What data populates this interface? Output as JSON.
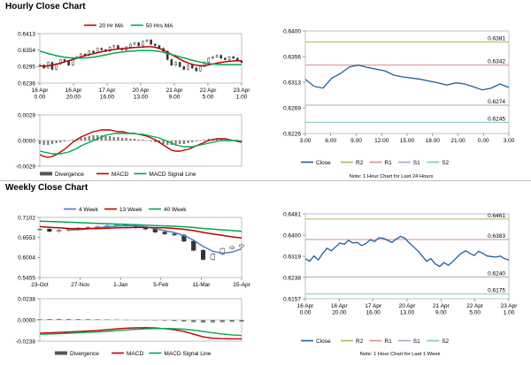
{
  "sections": {
    "hourly_title": "Hourly Close Chart",
    "weekly_title": "Weekly Close Chart"
  },
  "colors": {
    "price": "#333333",
    "ma_short": "#c00000",
    "ma_long": "#00a651",
    "macd": "#c00000",
    "signal": "#00a651",
    "divergence": "#7f7f7f",
    "close": "#1f5f9e",
    "r2": "#b3b35a",
    "r1": "#d98c8c",
    "s1": "#b0a0c8",
    "s2": "#7ec8c8",
    "ma_4": "#4a7fc1",
    "grid": "#d0d0d0"
  },
  "chart_data": [
    {
      "id": "hourly-price",
      "type": "candlestick",
      "legend": [
        "20 Hr MA",
        "50 Hrs MA"
      ],
      "ylim": [
        0.6236,
        0.6413
      ],
      "yticks": [
        "0.6413",
        "0.6354",
        "0.6295",
        "0.6236"
      ],
      "xticks": [
        "16 Apr\n0.00",
        "16 Apr\n20.00",
        "17 Apr\n16.00",
        "20 Apr\n13.00",
        "21 Apr\n9.00",
        "22 Apr\n5.00",
        "23 Apr\n1.00"
      ],
      "close": [
        0.63,
        0.629,
        0.631,
        0.6285,
        0.6305,
        0.632,
        0.6315,
        0.63,
        0.6325,
        0.633,
        0.634,
        0.6335,
        0.635,
        0.6345,
        0.636,
        0.6355,
        0.635,
        0.6365,
        0.637,
        0.636,
        0.6355,
        0.6365,
        0.6375,
        0.638,
        0.637,
        0.6385,
        0.639,
        0.6375,
        0.637,
        0.636,
        0.635,
        0.632,
        0.63,
        0.631,
        0.6295,
        0.6285,
        0.63,
        0.629,
        0.628,
        0.6295,
        0.631,
        0.6325,
        0.633,
        0.6335,
        0.6325,
        0.632,
        0.633,
        0.6325,
        0.6315,
        0.631
      ],
      "ma20": [
        0.6298,
        0.6296,
        0.6298,
        0.63,
        0.6303,
        0.6307,
        0.6312,
        0.6316,
        0.632,
        0.6325,
        0.633,
        0.6334,
        0.6338,
        0.6341,
        0.6345,
        0.6348,
        0.6351,
        0.6354,
        0.6356,
        0.6358,
        0.6359,
        0.636,
        0.6362,
        0.6363,
        0.6364,
        0.6365,
        0.6366,
        0.6366,
        0.6364,
        0.636,
        0.6354,
        0.6346,
        0.6338,
        0.633,
        0.6322,
        0.6314,
        0.6308,
        0.6303,
        0.63,
        0.6298,
        0.6299,
        0.6301,
        0.6304,
        0.6307,
        0.631,
        0.6312,
        0.6314,
        0.6315,
        0.6316,
        0.6316
      ],
      "ma50": [
        0.635,
        0.6346,
        0.6342,
        0.6338,
        0.6334,
        0.6331,
        0.6329,
        0.6327,
        0.6326,
        0.6325,
        0.6325,
        0.6326,
        0.6327,
        0.6329,
        0.6331,
        0.6334,
        0.6337,
        0.634,
        0.6343,
        0.6345,
        0.6347,
        0.6349,
        0.635,
        0.6351,
        0.6352,
        0.6352,
        0.6352,
        0.6352,
        0.6351,
        0.6349,
        0.6346,
        0.6342,
        0.6338,
        0.6334,
        0.633,
        0.6326,
        0.6322,
        0.6318,
        0.6314,
        0.6311,
        0.6308,
        0.6306,
        0.6304,
        0.6303,
        0.6302,
        0.6302,
        0.6302,
        0.6302,
        0.6302,
        0.6302
      ]
    },
    {
      "id": "hourly-macd",
      "type": "macd",
      "ylim": [
        -0.0029,
        0.0029
      ],
      "yticks": [
        "0.0029",
        "0.0000",
        "-0.0029"
      ],
      "legend": [
        "Divergence",
        "MACD",
        "MACD Signal Line"
      ],
      "divergence": [
        -0.0004,
        -0.0005,
        -0.0005,
        -0.0004,
        -0.0003,
        -0.0002,
        -0.0001,
        0.0,
        0.0001,
        0.0002,
        0.0003,
        0.0004,
        0.0005,
        0.0006,
        0.0006,
        0.0006,
        0.0005,
        0.0005,
        0.0004,
        0.0004,
        0.0003,
        0.0003,
        0.0002,
        0.0002,
        0.0001,
        0.0001,
        0.0,
        -0.0001,
        -0.0002,
        -0.0003,
        -0.0004,
        -0.0005,
        -0.0005,
        -0.0005,
        -0.0004,
        -0.0004,
        -0.0003,
        -0.0002,
        -0.0001,
        0.0,
        0.0001,
        0.0002,
        0.0002,
        0.0002,
        0.0002,
        0.0001,
        0.0001,
        0.0,
        -0.0001,
        -0.0001
      ],
      "macd": [
        -0.0016,
        -0.0018,
        -0.0019,
        -0.0018,
        -0.0016,
        -0.0013,
        -0.001,
        -0.0006,
        -0.0002,
        0.0001,
        0.0004,
        0.0006,
        0.0008,
        0.001,
        0.0011,
        0.0012,
        0.0012,
        0.0012,
        0.0011,
        0.001,
        0.001,
        0.0009,
        0.0008,
        0.0008,
        0.0007,
        0.0006,
        0.0005,
        0.0003,
        0.0001,
        -0.0002,
        -0.0005,
        -0.0008,
        -0.0011,
        -0.0012,
        -0.0012,
        -0.0011,
        -0.001,
        -0.0008,
        -0.0006,
        -0.0004,
        -0.0002,
        0.0,
        0.0001,
        0.0002,
        0.0002,
        0.0002,
        0.0001,
        0.0,
        -0.0001,
        -0.0002
      ],
      "signal": [
        -0.0012,
        -0.0013,
        -0.0014,
        -0.0015,
        -0.0015,
        -0.0015,
        -0.0014,
        -0.0013,
        -0.0011,
        -0.0009,
        -0.0006,
        -0.0004,
        -0.0002,
        0.0,
        0.0002,
        0.0004,
        0.0006,
        0.0007,
        0.0008,
        0.0008,
        0.0008,
        0.0008,
        0.0008,
        0.0008,
        0.0007,
        0.0007,
        0.0006,
        0.0005,
        0.0004,
        0.0003,
        0.0001,
        -0.0001,
        -0.0003,
        -0.0005,
        -0.0006,
        -0.0007,
        -0.0007,
        -0.0007,
        -0.0006,
        -0.0005,
        -0.0004,
        -0.0003,
        -0.0002,
        -0.0001,
        0.0,
        0.0,
        0.0,
        0.0,
        0.0,
        -0.0001
      ]
    },
    {
      "id": "hourly-pivot",
      "type": "line",
      "ylim": [
        0.6226,
        0.64
      ],
      "yticks": [
        "0.6400",
        "0.6356",
        "0.6313",
        "0.6269",
        "0.6226"
      ],
      "xticks": [
        "3.00",
        "6.00",
        "9.00",
        "12.00",
        "15.00",
        "18.00",
        "21.00",
        "0.00",
        "3.00"
      ],
      "levels": {
        "R2": 0.6381,
        "R1": 0.6342,
        "S1": 0.6274,
        "S2": 0.6245
      },
      "level_labels": [
        "0.6381",
        "0.6342",
        "0.6274",
        "0.6245"
      ],
      "close": [
        0.6318,
        0.6306,
        0.6303,
        0.632,
        0.6328,
        0.6339,
        0.6342,
        0.6338,
        0.6335,
        0.6332,
        0.6325,
        0.6322,
        0.632,
        0.6318,
        0.6315,
        0.6312,
        0.6308,
        0.6312,
        0.631,
        0.6305,
        0.63,
        0.6303,
        0.631,
        0.6304
      ],
      "legend": [
        "Close",
        "R2",
        "R1",
        "S1",
        "S2"
      ],
      "note": "Note: 1 Hour Chart for Last 24 Hours"
    },
    {
      "id": "weekly-price",
      "type": "candlestick",
      "legend": [
        "4 Week",
        "13 Week",
        "40 Week"
      ],
      "ylim": [
        0.5455,
        0.7102
      ],
      "yticks": [
        "0.7102",
        "0.6553",
        "0.6004",
        "0.5455"
      ],
      "xticks": [
        "23-Oct",
        "27-Nov",
        "1-Jan",
        "5-Feb",
        "11-Mar",
        "15-Apr"
      ],
      "close": [
        0.678,
        0.672,
        0.675,
        0.677,
        0.681,
        0.683,
        0.685,
        0.688,
        0.69,
        0.687,
        0.682,
        0.678,
        0.67,
        0.665,
        0.662,
        0.645,
        0.62,
        0.595,
        0.61,
        0.625,
        0.63,
        0.635
      ],
      "ma4": [
        null,
        null,
        null,
        0.6755,
        0.6762,
        0.679,
        0.6815,
        0.6842,
        0.6865,
        0.6875,
        0.6867,
        0.6843,
        0.6793,
        0.6738,
        0.6688,
        0.6605,
        0.648,
        0.6305,
        0.6175,
        0.612,
        0.615,
        0.624
      ],
      "ma13": [
        0.685,
        0.683,
        0.6815,
        0.68,
        0.6795,
        0.6795,
        0.6798,
        0.6805,
        0.6815,
        0.6822,
        0.6826,
        0.6826,
        0.6822,
        0.6815,
        0.68,
        0.6775,
        0.674,
        0.669,
        0.665,
        0.661,
        0.657,
        0.654
      ],
      "ma40": [
        0.7,
        0.699,
        0.698,
        0.697,
        0.696,
        0.695,
        0.694,
        0.693,
        0.692,
        0.691,
        0.69,
        0.689,
        0.688,
        0.687,
        0.686,
        0.6845,
        0.6825,
        0.68,
        0.678,
        0.676,
        0.674,
        0.672
      ]
    },
    {
      "id": "weekly-macd",
      "type": "macd",
      "ylim": [
        -0.0238,
        0.0238
      ],
      "yticks": [
        "0.0238",
        "0.0000",
        "-0.0238"
      ],
      "legend": [
        "Divergence",
        "MACD",
        "MACD Signal Line"
      ],
      "divergence": [
        0.0008,
        0.001,
        0.0011,
        0.001,
        0.0009,
        0.0008,
        0.0007,
        0.0006,
        0.0004,
        0.0002,
        0.0,
        -0.0002,
        -0.0005,
        -0.0008,
        -0.0012,
        -0.0018,
        -0.0025,
        -0.003,
        -0.0028,
        -0.0026,
        -0.0022,
        -0.002
      ],
      "macd": [
        -0.015,
        -0.0145,
        -0.014,
        -0.0136,
        -0.013,
        -0.0125,
        -0.0118,
        -0.011,
        -0.01,
        -0.0092,
        -0.0088,
        -0.0087,
        -0.009,
        -0.0098,
        -0.011,
        -0.013,
        -0.016,
        -0.019,
        -0.0205,
        -0.021,
        -0.0212,
        -0.0212
      ],
      "signal": [
        -0.016,
        -0.0158,
        -0.0155,
        -0.015,
        -0.0145,
        -0.014,
        -0.0135,
        -0.0128,
        -0.012,
        -0.0112,
        -0.0105,
        -0.01,
        -0.0097,
        -0.0096,
        -0.0098,
        -0.0104,
        -0.0115,
        -0.013,
        -0.0145,
        -0.0158,
        -0.0168,
        -0.0175
      ]
    },
    {
      "id": "weekly-pivot",
      "type": "line",
      "ylim": [
        0.6157,
        0.6481
      ],
      "yticks": [
        "0.6481",
        "0.6400",
        "0.6319",
        "0.6238",
        "0.6157"
      ],
      "xticks": [
        "16 Apr\n0.00",
        "16 Apr\n20.00",
        "17 Apr\n16.00",
        "20 Apr\n13.00",
        "21 Apr\n9.00",
        "22 Apr\n5.00",
        "23 Apr\n1.00"
      ],
      "levels": {
        "R2": 0.6461,
        "R1": 0.6383,
        "S1": 0.624,
        "S2": 0.6175
      },
      "level_labels": [
        "0.6461",
        "0.6383",
        "0.6240",
        "0.6175"
      ],
      "close": [
        0.631,
        0.63,
        0.632,
        0.6305,
        0.633,
        0.635,
        0.634,
        0.6355,
        0.637,
        0.6365,
        0.638,
        0.637,
        0.6372,
        0.636,
        0.6368,
        0.6382,
        0.6375,
        0.639,
        0.6388,
        0.638,
        0.6372,
        0.6385,
        0.6395,
        0.6388,
        0.637,
        0.6355,
        0.634,
        0.632,
        0.63,
        0.631,
        0.629,
        0.628,
        0.6295,
        0.6285,
        0.6298,
        0.6315,
        0.633,
        0.634,
        0.633,
        0.6322,
        0.6338,
        0.633,
        0.632,
        0.6318,
        0.6316,
        0.632,
        0.631,
        0.6305
      ],
      "legend": [
        "Close",
        "R2",
        "R1",
        "S1",
        "S2"
      ],
      "note": "Note: 1 Hour Chart for Last 1 Week"
    }
  ]
}
